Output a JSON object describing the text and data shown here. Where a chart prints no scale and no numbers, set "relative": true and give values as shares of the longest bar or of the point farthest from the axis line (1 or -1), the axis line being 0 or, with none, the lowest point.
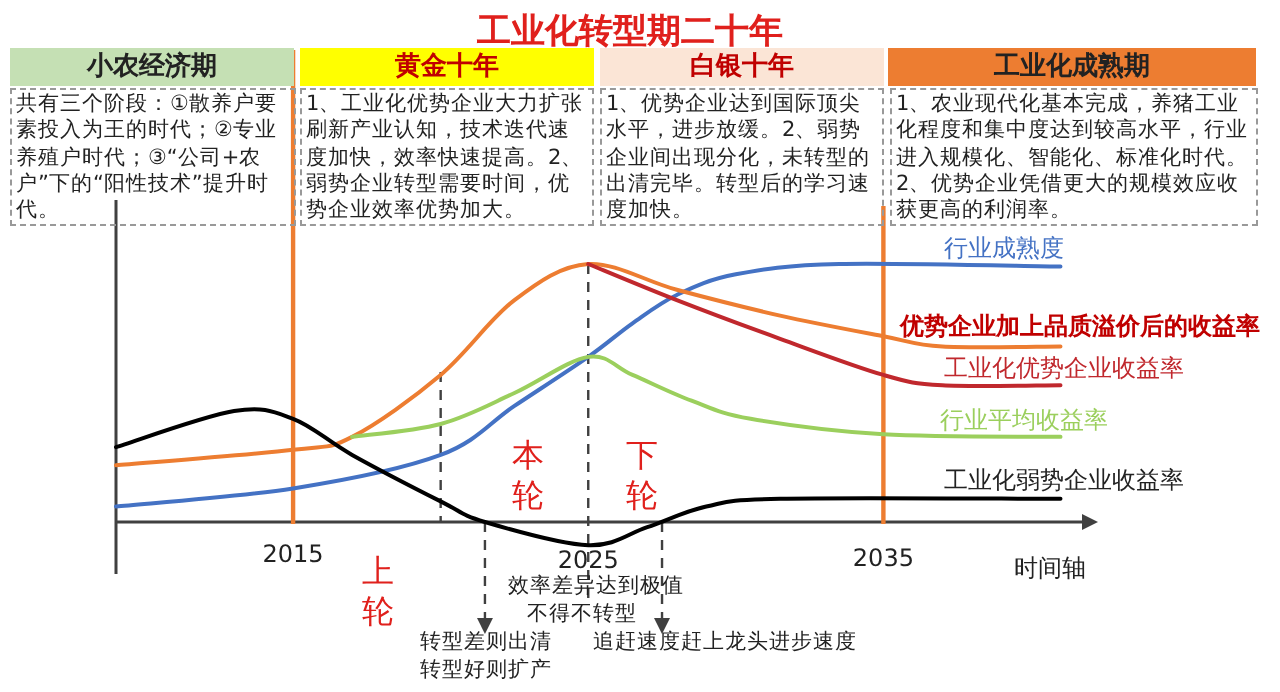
{
  "chart_data": {
    "type": "line",
    "relative": true,
    "title": "工业化转型期二十年",
    "xlabel": "时间轴",
    "xlim": [
      2009,
      2042
    ],
    "xticks": [
      2015,
      2025,
      2035
    ],
    "series": [
      {
        "name": "行业成熟度",
        "color": "#4472c4",
        "x": [
          2009,
          2015,
          2020,
          2022.5,
          2025,
          2026.5,
          2028,
          2030,
          2033.5,
          2041
        ],
        "values": [
          0.06,
          0.13,
          0.26,
          0.45,
          0.64,
          0.77,
          0.88,
          0.96,
          1.0,
          0.99
        ]
      },
      {
        "name": "优势企业加上品质溢价后的收益率",
        "color": "#ed7d31",
        "x": [
          2009,
          2015,
          2017,
          2020,
          2022.5,
          2025,
          2028,
          2031.5,
          2035,
          2037,
          2041
        ],
        "values": [
          0.22,
          0.28,
          0.33,
          0.57,
          0.86,
          1.0,
          0.9,
          0.8,
          0.72,
          0.68,
          0.68
        ]
      },
      {
        "name": "工业化优势企业收益率",
        "color": "#c0282d",
        "x": [
          2025,
          2028,
          2031.5,
          2035,
          2037,
          2041
        ],
        "values": [
          1.0,
          0.86,
          0.71,
          0.57,
          0.53,
          0.53
        ]
      },
      {
        "name": "行业平均收益率",
        "color": "#9bcf5d",
        "x": [
          2017,
          2020,
          2022.5,
          2025,
          2026.5,
          2028.5,
          2030.5,
          2035,
          2041
        ],
        "values": [
          0.33,
          0.38,
          0.5,
          0.64,
          0.57,
          0.47,
          0.4,
          0.34,
          0.33
        ]
      },
      {
        "name": "工业化弱势企业收益率",
        "color": "#000000",
        "x": [
          2009,
          2013,
          2015,
          2017,
          2020,
          2021.5,
          2025,
          2027,
          2029,
          2031.5,
          2041
        ],
        "values": [
          0.29,
          0.43,
          0.4,
          0.26,
          0.08,
          0,
          -0.09,
          -0.02,
          0.06,
          0.09,
          0.09
        ]
      }
    ],
    "ref_lines": [
      {
        "axis": "x",
        "value": 2015,
        "color": "#ed7d31",
        "line_style": "solid"
      },
      {
        "axis": "x",
        "value": 2035,
        "color": "#ed7d31",
        "line_style": "solid"
      },
      {
        "axis": "x",
        "value": 2020,
        "color": "#404040",
        "line_style": "dashed"
      },
      {
        "axis": "x",
        "value": 2021.5,
        "color": "#404040",
        "line_style": "dashed"
      },
      {
        "axis": "x",
        "value": 2025,
        "color": "#404040",
        "line_style": "dashed"
      },
      {
        "axis": "x",
        "value": 2027.5,
        "color": "#404040",
        "line_style": "dashed"
      }
    ],
    "annotations": [
      "小农经济期",
      "黄金十年",
      "白银十年",
      "工业化成熟期",
      "共有三个阶段：①散养户要素投入为王的时代；②专业养殖户时代；③“公司+农户”下的“阳性技术”提升时代。",
      "1、工业化优势企业大力扩张刷新产业认知，技术迭代速度加快，效率快速提高。2、弱势企业转型需要时间，优势企业效率优势加大。",
      "1、优势企业达到国际顶尖水平，进步放缓。2、弱势企业间出现分化，未转型的出清完毕。转型后的学习速度加快。",
      "1、农业现代化基本完成，养猪工业化程度和集中度达到较高水平，行业进入规模化、智能化、标准化时代。2、优势企业凭借更大的规模效应收获更高的利润率。",
      "上轮",
      "本轮",
      "下轮",
      "效率差异达到极值",
      "不得不转型",
      "转型差则出清",
      "转型好则扩产",
      "追赶速度赶上龙头进步速度"
    ]
  }
}
